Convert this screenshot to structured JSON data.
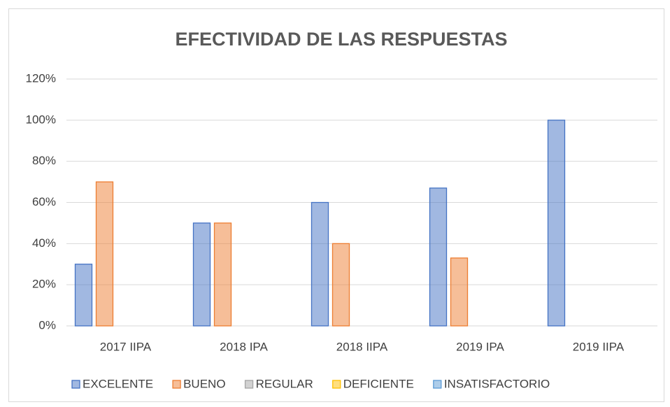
{
  "chart_data": {
    "type": "bar",
    "title": "EFECTIVIDAD DE LAS RESPUESTAS",
    "categories": [
      "2017 IIPA",
      "2018 IPA",
      "2018 IIPA",
      "2019 IPA",
      "2019 IIPA"
    ],
    "series": [
      {
        "name": "EXCELENTE",
        "color": "#4472c4",
        "values": [
          30,
          50,
          60,
          67,
          100
        ]
      },
      {
        "name": "BUENO",
        "color": "#ed7d31",
        "values": [
          70,
          50,
          40,
          33,
          0
        ]
      },
      {
        "name": "REGULAR",
        "color": "#a5a5a5",
        "values": [
          0,
          0,
          0,
          0,
          0
        ]
      },
      {
        "name": "DEFICIENTE",
        "color": "#ffc000",
        "values": [
          0,
          0,
          0,
          0,
          0
        ]
      },
      {
        "name": "INSATISFACTORIO",
        "color": "#5b9bd5",
        "values": [
          0,
          0,
          0,
          0,
          0
        ]
      }
    ],
    "ylim": [
      0,
      120
    ],
    "yticks": [
      {
        "value": 0,
        "label": "0%"
      },
      {
        "value": 20,
        "label": "20%"
      },
      {
        "value": 40,
        "label": "40%"
      },
      {
        "value": 60,
        "label": "60%"
      },
      {
        "value": 80,
        "label": "80%"
      },
      {
        "value": 100,
        "label": "100%"
      },
      {
        "value": 120,
        "label": "120%"
      }
    ],
    "grid": true,
    "legend": "bottom"
  }
}
